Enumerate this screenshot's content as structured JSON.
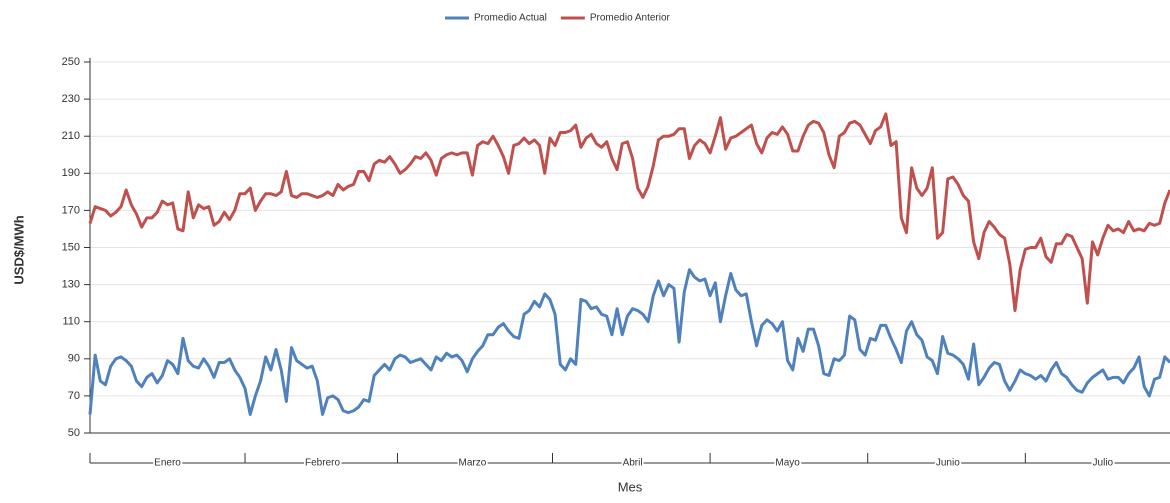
{
  "chart_data": {
    "type": "line",
    "x_label": "Mes",
    "y_label": "USD$/MWh",
    "categories": [
      null,
      null,
      null,
      null,
      null,
      null,
      null,
      null,
      null,
      null,
      null,
      null,
      null,
      null,
      null,
      "Enero",
      null,
      null,
      null,
      null,
      null,
      null,
      null,
      null,
      null,
      null,
      null,
      null,
      null,
      null,
      null,
      null,
      null,
      null,
      null,
      null,
      null,
      null,
      null,
      null,
      null,
      null,
      null,
      null,
      null,
      "Febrero",
      null,
      null,
      null,
      null,
      null,
      null,
      null,
      null,
      null,
      null,
      null,
      null,
      null,
      null,
      null,
      null,
      null,
      null,
      null,
      null,
      null,
      null,
      null,
      null,
      null,
      null,
      null,
      null,
      "Marzo",
      null,
      null,
      null,
      null,
      null,
      null,
      null,
      null,
      null,
      null,
      null,
      null,
      null,
      null,
      null,
      null,
      null,
      null,
      null,
      null,
      null,
      null,
      null,
      null,
      null,
      null,
      null,
      null,
      null,
      null,
      "Abril",
      null,
      null,
      null,
      null,
      null,
      null,
      null,
      null,
      null,
      null,
      null,
      null,
      null,
      null,
      null,
      null,
      null,
      null,
      null,
      null,
      null,
      null,
      null,
      null,
      null,
      null,
      null,
      null,
      null,
      "Mayo",
      null,
      null,
      null,
      null,
      null,
      null,
      null,
      null,
      null,
      null,
      null,
      null,
      null,
      null,
      null,
      null,
      null,
      null,
      null,
      null,
      null,
      null,
      null,
      null,
      null,
      null,
      null,
      null,
      null,
      null,
      "Junio",
      null,
      null,
      null,
      null,
      null,
      null,
      null,
      null,
      null,
      null,
      null,
      null,
      null,
      null,
      null,
      null,
      null,
      null,
      null,
      null,
      null,
      null,
      null,
      null,
      null,
      null,
      null,
      null,
      null,
      "Julio",
      null,
      null,
      null,
      null,
      null,
      null,
      null,
      null,
      null,
      null,
      null,
      null,
      null
    ],
    "series": [
      {
        "name": "Promedio Actual",
        "color": "#4f81bd",
        "values": [
          60,
          92,
          78,
          76,
          86,
          90,
          91,
          89,
          86,
          78,
          75,
          80,
          82,
          77,
          81,
          89,
          87,
          82,
          101,
          89,
          86,
          85,
          90,
          86,
          80,
          88,
          88,
          90,
          84,
          80,
          74,
          60,
          70,
          78,
          91,
          84,
          95,
          84,
          67,
          96,
          89,
          87,
          85,
          86,
          78,
          60,
          69,
          70,
          68,
          62,
          61,
          62,
          64,
          68,
          67,
          81,
          84,
          87,
          84,
          90,
          92,
          91,
          88,
          89,
          90,
          87,
          84,
          91,
          89,
          93,
          91,
          92,
          89,
          83,
          90,
          94,
          97,
          103,
          103,
          107,
          109,
          105,
          102,
          101,
          114,
          116,
          121,
          118,
          125,
          122,
          114,
          87,
          84,
          90,
          87,
          122,
          121,
          117,
          118,
          114,
          113,
          103,
          117,
          103,
          113,
          117,
          116,
          114,
          110,
          124,
          132,
          124,
          130,
          128,
          99,
          126,
          138,
          134,
          132,
          133,
          124,
          131,
          110,
          124,
          136,
          127,
          124,
          125,
          110,
          97,
          108,
          111,
          109,
          105,
          110,
          89,
          84,
          101,
          94,
          106,
          106,
          97,
          82,
          81,
          90,
          89,
          92,
          113,
          111,
          95,
          92,
          101,
          100,
          108,
          108,
          101,
          95,
          88,
          105,
          110,
          103,
          100,
          91,
          89,
          82,
          102,
          93,
          92,
          90,
          87,
          79,
          98,
          76,
          80,
          85,
          88,
          87,
          78,
          73,
          78,
          84,
          82,
          81,
          79,
          81,
          78,
          84,
          88,
          82,
          80,
          76,
          73,
          72,
          77,
          80,
          82,
          84,
          79,
          80,
          80,
          77,
          82,
          85,
          91,
          75,
          70,
          79,
          80,
          91,
          88
        ]
      },
      {
        "name": "Promedio Anterior",
        "color": "#c0504d",
        "values": [
          163,
          172,
          171,
          170,
          167,
          169,
          172,
          181,
          173,
          168,
          161,
          166,
          166,
          169,
          175,
          173,
          174,
          160,
          159,
          180,
          166,
          173,
          171,
          172,
          162,
          164,
          169,
          165,
          170,
          179,
          179,
          182,
          170,
          175,
          179,
          179,
          178,
          180,
          191,
          178,
          177,
          179,
          179,
          178,
          177,
          178,
          180,
          178,
          184,
          181,
          183,
          184,
          191,
          191,
          186,
          195,
          197,
          196,
          199,
          195,
          190,
          192,
          195,
          199,
          198,
          201,
          197,
          189,
          198,
          200,
          201,
          200,
          201,
          201,
          189,
          205,
          207,
          206,
          210,
          205,
          199,
          190,
          205,
          206,
          209,
          206,
          208,
          205,
          190,
          209,
          205,
          212,
          212,
          213,
          216,
          204,
          209,
          211,
          206,
          204,
          207,
          198,
          192,
          206,
          207,
          198,
          182,
          177,
          183,
          194,
          208,
          210,
          210,
          211,
          214,
          214,
          198,
          205,
          208,
          206,
          201,
          210,
          220,
          203,
          209,
          210,
          212,
          214,
          216,
          206,
          201,
          209,
          212,
          211,
          215,
          211,
          202,
          202,
          210,
          216,
          218,
          217,
          212,
          200,
          193,
          210,
          212,
          217,
          218,
          216,
          211,
          206,
          213,
          215,
          222,
          205,
          207,
          166,
          158,
          193,
          182,
          178,
          182,
          193,
          155,
          158,
          187,
          188,
          184,
          178,
          175,
          153,
          144,
          158,
          164,
          161,
          157,
          155,
          141,
          116,
          138,
          149,
          150,
          150,
          155,
          145,
          142,
          152,
          152,
          157,
          156,
          150,
          144,
          120,
          153,
          146,
          155,
          162,
          159,
          160,
          158,
          164,
          159,
          160,
          159,
          163,
          162,
          163,
          174,
          181
        ]
      }
    ],
    "ylim": [
      50,
      250
    ],
    "yticks": [
      50,
      70,
      90,
      110,
      130,
      150,
      170,
      190,
      210,
      230,
      250
    ],
    "grid": true,
    "legend": "top"
  }
}
